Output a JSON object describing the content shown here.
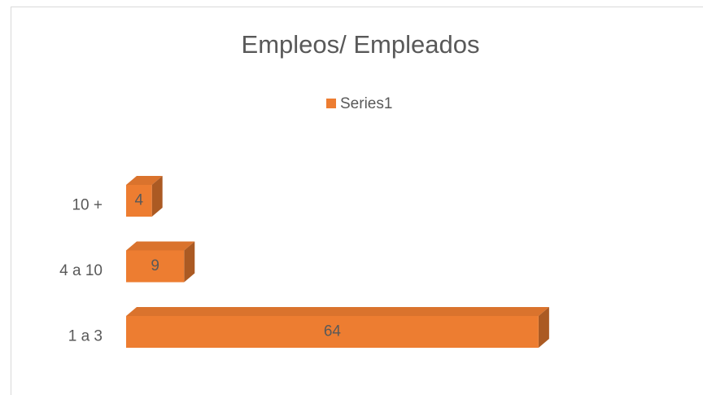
{
  "chart_data": {
    "type": "bar3d",
    "orientation": "horizontal",
    "title": "Empleos/ Empleados",
    "categories": [
      "1 a 3",
      "4 a 10",
      "10 +"
    ],
    "series": [
      {
        "name": "Series1",
        "color": "#ed7d31",
        "values": [
          64,
          9,
          4
        ]
      }
    ],
    "legend": "top"
  }
}
